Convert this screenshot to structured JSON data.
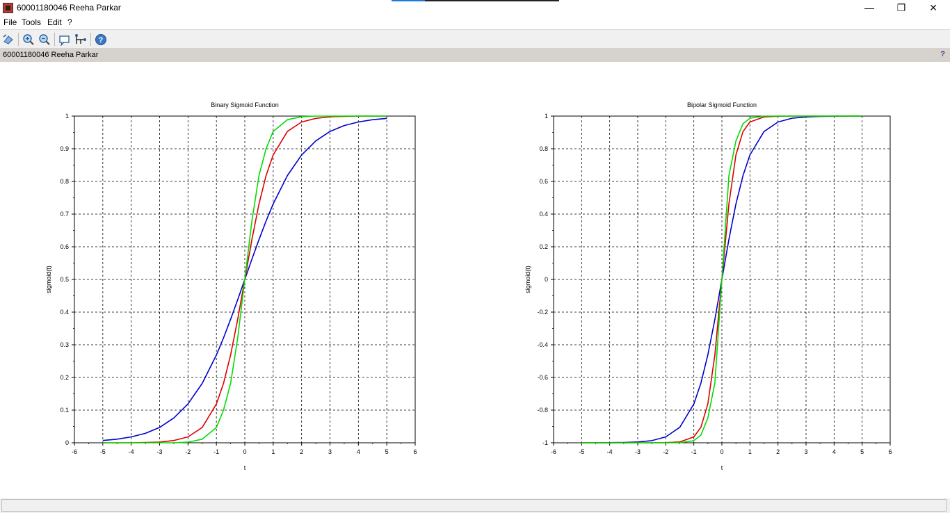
{
  "window": {
    "title": "60001180046 Reeha Parkar",
    "minimize_glyph": "—",
    "maximize_glyph": "❐",
    "close_glyph": "✕"
  },
  "menu": {
    "items": [
      "File",
      "Tools",
      "Edit",
      "?"
    ]
  },
  "toolbar": {
    "icons": [
      "rotate-icon",
      "zoom-in-icon",
      "zoom-out-icon",
      "datatip-icon",
      "edit-axes-icon",
      "help-icon"
    ]
  },
  "infobar": {
    "label": "60001180046 Reeha Parkar",
    "help_glyph": "?"
  },
  "colors": {
    "series_blue": "#0000cc",
    "series_red": "#dd0000",
    "series_green": "#00dd00",
    "infobar_bg": "#d6d3ce"
  },
  "chart_data": [
    {
      "type": "line",
      "title": "Binary Sigmoid Function",
      "xlabel": "t",
      "ylabel": "sigmoid(t)",
      "xlim": [
        -6,
        6
      ],
      "ylim": [
        0,
        1
      ],
      "xticks": [
        "-6",
        "-5",
        "-4",
        "-3",
        "-2",
        "-1",
        "0",
        "1",
        "2",
        "3",
        "4",
        "5",
        "6"
      ],
      "yticks": [
        "0",
        "0.1",
        "0.2",
        "0.3",
        "0.4",
        "0.5",
        "0.6",
        "0.7",
        "0.8",
        "0.9",
        "1"
      ],
      "grid": true,
      "x": [
        -5,
        -4.5,
        -4,
        -3.5,
        -3,
        -2.5,
        -2,
        -1.5,
        -1,
        -0.75,
        -0.5,
        -0.25,
        0,
        0.25,
        0.5,
        0.75,
        1,
        1.5,
        2,
        2.5,
        3,
        3.5,
        4,
        4.5,
        5
      ],
      "series": [
        {
          "color": "#0000cc",
          "values": [
            0.007,
            0.011,
            0.018,
            0.029,
            0.047,
            0.076,
            0.119,
            0.182,
            0.269,
            0.321,
            0.378,
            0.438,
            0.5,
            0.562,
            0.622,
            0.679,
            0.731,
            0.818,
            0.881,
            0.924,
            0.953,
            0.971,
            0.982,
            0.989,
            0.993
          ]
        },
        {
          "color": "#dd0000",
          "values": [
            0,
            0,
            0,
            0.001,
            0.002,
            0.007,
            0.018,
            0.047,
            0.119,
            0.182,
            0.269,
            0.378,
            0.5,
            0.622,
            0.731,
            0.818,
            0.881,
            0.953,
            0.982,
            0.993,
            0.998,
            0.999,
            1,
            1,
            1
          ]
        },
        {
          "color": "#00dd00",
          "values": [
            0,
            0,
            0,
            0,
            0,
            0,
            0.002,
            0.011,
            0.047,
            0.1,
            0.182,
            0.321,
            0.5,
            0.679,
            0.818,
            0.9,
            0.953,
            0.989,
            0.998,
            1,
            1,
            1,
            1,
            1,
            1
          ]
        }
      ]
    },
    {
      "type": "line",
      "title": "Bipolar Sigmoid Function",
      "xlabel": "t",
      "ylabel": "sigmoid(t)",
      "xlim": [
        -6,
        6
      ],
      "ylim": [
        -1,
        1
      ],
      "xticks": [
        "-6",
        "-5",
        "-4",
        "-3",
        "-2",
        "-1",
        "0",
        "1",
        "2",
        "3",
        "4",
        "5",
        "6"
      ],
      "yticks": [
        "-1",
        "-0.8",
        "-0.6",
        "-0.4",
        "-0.2",
        "0",
        "0.2",
        "0.4",
        "0.6",
        "0.8",
        "1"
      ],
      "grid": true,
      "x": [
        -5,
        -4.5,
        -4,
        -3.5,
        -3,
        -2.5,
        -2,
        -1.5,
        -1,
        -0.75,
        -0.5,
        -0.25,
        0,
        0.25,
        0.5,
        0.75,
        1,
        1.5,
        2,
        2.5,
        3,
        3.5,
        4,
        4.5,
        5
      ],
      "series": [
        {
          "color": "#0000cc",
          "values": [
            -1,
            -1,
            -0.999,
            -0.998,
            -0.995,
            -0.987,
            -0.964,
            -0.905,
            -0.762,
            -0.635,
            -0.462,
            -0.245,
            0,
            0.245,
            0.462,
            0.635,
            0.762,
            0.905,
            0.964,
            0.987,
            0.995,
            0.998,
            0.999,
            1,
            1
          ]
        },
        {
          "color": "#dd0000",
          "values": [
            -1,
            -1,
            -1,
            -1,
            -1,
            -1,
            -0.999,
            -0.995,
            -0.964,
            -0.905,
            -0.762,
            -0.462,
            0,
            0.462,
            0.762,
            0.905,
            0.964,
            0.995,
            0.999,
            1,
            1,
            1,
            1,
            1,
            1
          ]
        },
        {
          "color": "#00dd00",
          "values": [
            -1,
            -1,
            -1,
            -1,
            -1,
            -1,
            -1,
            -1,
            -0.987,
            -0.953,
            -0.848,
            -0.635,
            0,
            0.635,
            0.848,
            0.953,
            0.987,
            1,
            1,
            1,
            1,
            1,
            1,
            1,
            1
          ]
        }
      ]
    }
  ]
}
